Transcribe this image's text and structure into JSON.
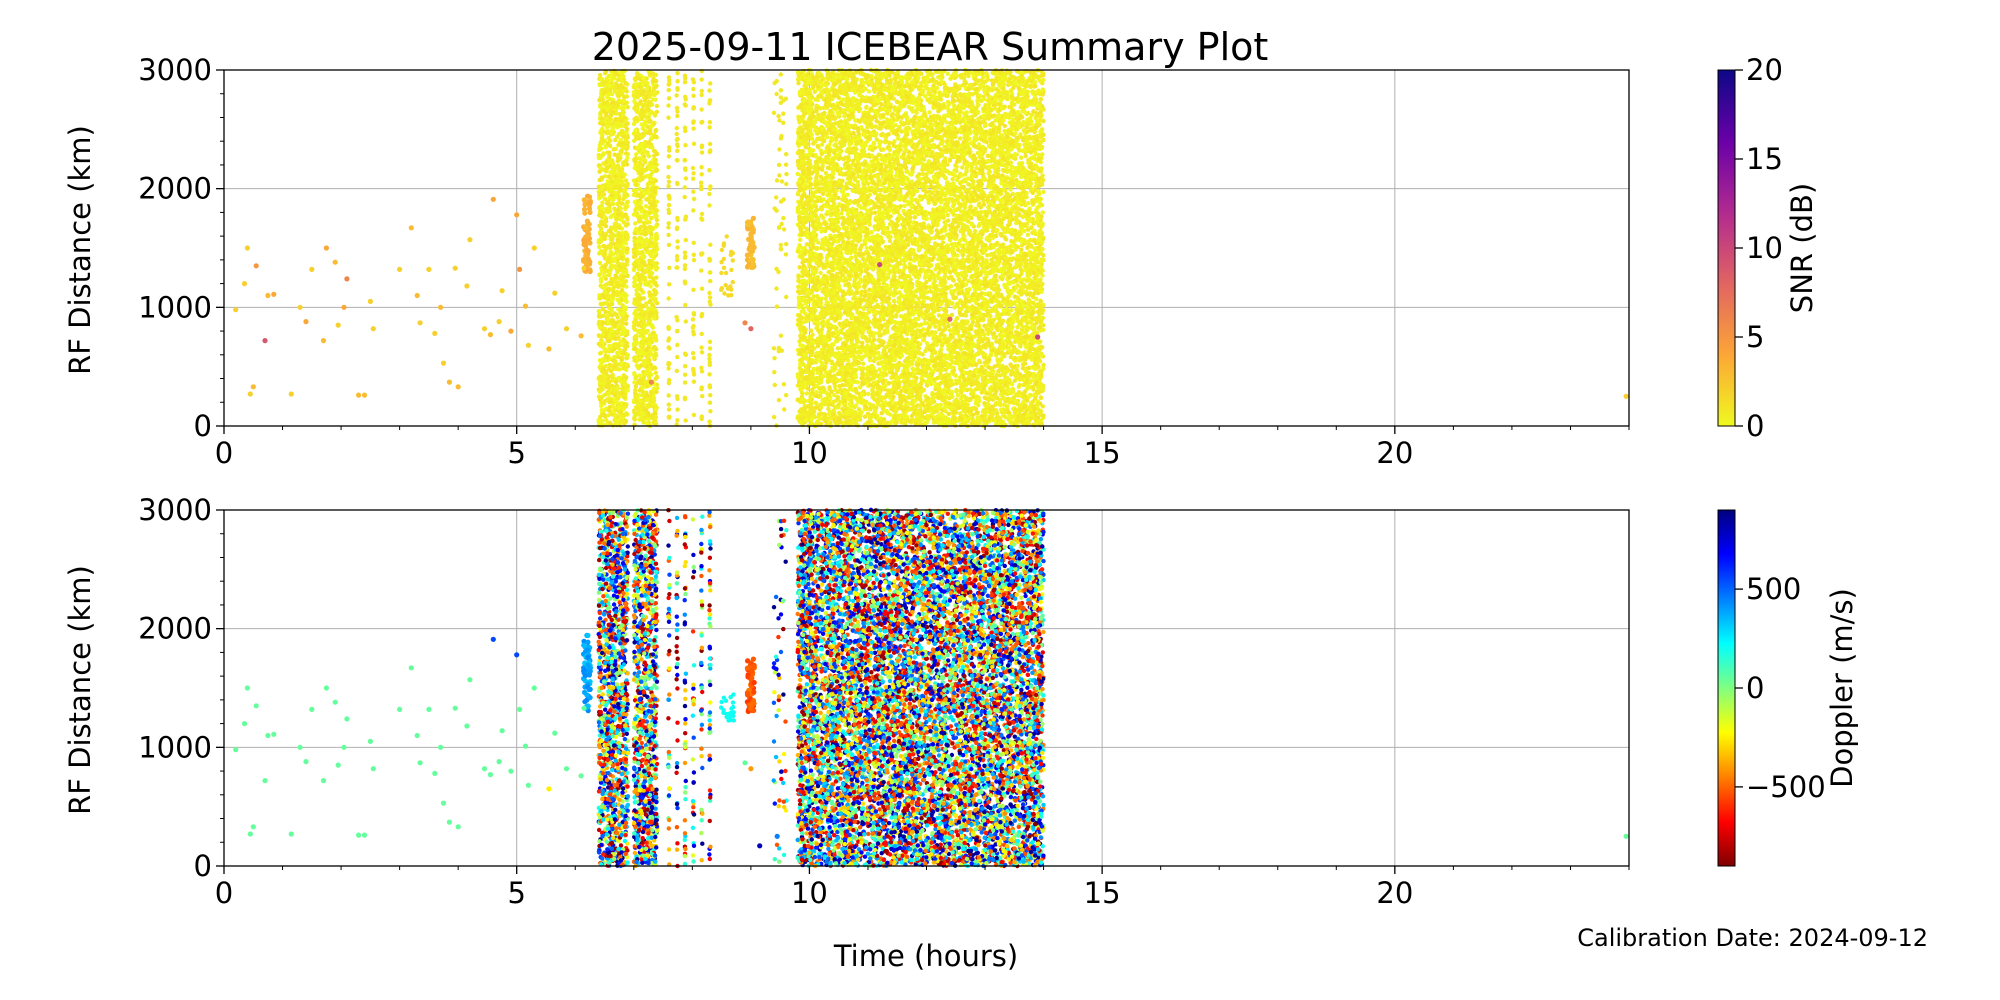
{
  "figure": {
    "title": "2025-09-11 ICEBEAR Summary Plot",
    "xlabel": "Time (hours)",
    "footnote": "Calibration Date: 2024-09-12"
  },
  "chart_data": [
    {
      "type": "scatter",
      "panel": "top",
      "title": "2025-09-11 ICEBEAR Summary Plot",
      "xlabel": "",
      "ylabel": "RF Distance (km)",
      "xlim": [
        0,
        24
      ],
      "ylim": [
        0,
        3000
      ],
      "x_ticks": [
        0,
        5,
        10,
        15,
        20
      ],
      "y_ticks": [
        0,
        1000,
        2000,
        3000
      ],
      "grid": true,
      "color_variable": "SNR (dB)",
      "colorbar": {
        "label": "SNR (dB)",
        "colormap": "plasma_r",
        "range": [
          0,
          20
        ],
        "ticks": [
          0,
          5,
          10,
          15,
          20
        ],
        "stops": [
          "#f0f921",
          "#fca636",
          "#e16462",
          "#b12a90",
          "#6a00a8",
          "#0d0887"
        ]
      },
      "dense_bands": [
        {
          "x": [
            6.4,
            6.9
          ],
          "y": [
            0,
            3000
          ],
          "value": 0.5
        },
        {
          "x": [
            7.0,
            7.4
          ],
          "y": [
            0,
            3000
          ],
          "value": 0.5
        },
        {
          "x": [
            9.8,
            14.0
          ],
          "y": [
            0,
            3000
          ],
          "value": 0.5
        }
      ],
      "sparse_columns": [
        {
          "x": [
            7.6,
            8.3
          ],
          "y": [
            0,
            3000
          ],
          "count": 240,
          "value": 0.8
        },
        {
          "x": [
            8.5,
            8.7
          ],
          "y": [
            1100,
            1600
          ],
          "count": 25,
          "value": 1.5
        },
        {
          "x": [
            9.4,
            9.6
          ],
          "y": [
            0,
            3000
          ],
          "count": 60,
          "value": 0.8
        }
      ],
      "streaks": [
        {
          "x": 6.2,
          "y": [
            1300,
            1950
          ],
          "value": 3.5
        },
        {
          "x": 9.0,
          "y": [
            1300,
            1750
          ],
          "value": 3.0
        }
      ],
      "points": [
        {
          "x": 0.2,
          "y": 980,
          "v": 2
        },
        {
          "x": 0.35,
          "y": 1200,
          "v": 2
        },
        {
          "x": 0.4,
          "y": 1500,
          "v": 2
        },
        {
          "x": 0.45,
          "y": 270,
          "v": 2
        },
        {
          "x": 0.5,
          "y": 330,
          "v": 3
        },
        {
          "x": 0.55,
          "y": 1350,
          "v": 5
        },
        {
          "x": 0.7,
          "y": 720,
          "v": 9
        },
        {
          "x": 0.75,
          "y": 1100,
          "v": 3
        },
        {
          "x": 0.85,
          "y": 1110,
          "v": 4
        },
        {
          "x": 1.15,
          "y": 270,
          "v": 2
        },
        {
          "x": 1.3,
          "y": 1000,
          "v": 2
        },
        {
          "x": 1.4,
          "y": 880,
          "v": 4
        },
        {
          "x": 1.5,
          "y": 1320,
          "v": 2
        },
        {
          "x": 1.7,
          "y": 720,
          "v": 3
        },
        {
          "x": 1.75,
          "y": 1500,
          "v": 4
        },
        {
          "x": 1.9,
          "y": 1380,
          "v": 3
        },
        {
          "x": 1.95,
          "y": 850,
          "v": 2
        },
        {
          "x": 2.05,
          "y": 1000,
          "v": 4
        },
        {
          "x": 2.1,
          "y": 1240,
          "v": 6
        },
        {
          "x": 2.3,
          "y": 260,
          "v": 3
        },
        {
          "x": 2.4,
          "y": 260,
          "v": 3
        },
        {
          "x": 2.5,
          "y": 1050,
          "v": 2
        },
        {
          "x": 2.55,
          "y": 820,
          "v": 2
        },
        {
          "x": 3.0,
          "y": 1320,
          "v": 2
        },
        {
          "x": 3.2,
          "y": 1670,
          "v": 3
        },
        {
          "x": 3.3,
          "y": 1100,
          "v": 3
        },
        {
          "x": 3.35,
          "y": 870,
          "v": 2
        },
        {
          "x": 3.5,
          "y": 1320,
          "v": 2
        },
        {
          "x": 3.6,
          "y": 780,
          "v": 2
        },
        {
          "x": 3.7,
          "y": 1000,
          "v": 3
        },
        {
          "x": 3.75,
          "y": 530,
          "v": 2
        },
        {
          "x": 3.85,
          "y": 370,
          "v": 3
        },
        {
          "x": 3.95,
          "y": 1330,
          "v": 2
        },
        {
          "x": 4.0,
          "y": 330,
          "v": 3
        },
        {
          "x": 4.15,
          "y": 1180,
          "v": 2
        },
        {
          "x": 4.2,
          "y": 1570,
          "v": 2
        },
        {
          "x": 4.45,
          "y": 820,
          "v": 2
        },
        {
          "x": 4.55,
          "y": 770,
          "v": 3
        },
        {
          "x": 4.6,
          "y": 1910,
          "v": 4
        },
        {
          "x": 4.7,
          "y": 880,
          "v": 2
        },
        {
          "x": 4.75,
          "y": 1140,
          "v": 2
        },
        {
          "x": 4.9,
          "y": 800,
          "v": 4
        },
        {
          "x": 5.0,
          "y": 1780,
          "v": 4
        },
        {
          "x": 5.05,
          "y": 1320,
          "v": 5
        },
        {
          "x": 5.15,
          "y": 1010,
          "v": 3
        },
        {
          "x": 5.2,
          "y": 680,
          "v": 2
        },
        {
          "x": 5.3,
          "y": 1500,
          "v": 2
        },
        {
          "x": 5.55,
          "y": 650,
          "v": 3
        },
        {
          "x": 5.65,
          "y": 1120,
          "v": 2
        },
        {
          "x": 5.85,
          "y": 820,
          "v": 2
        },
        {
          "x": 6.1,
          "y": 760,
          "v": 3
        },
        {
          "x": 6.15,
          "y": 1330,
          "v": 2
        },
        {
          "x": 7.3,
          "y": 370,
          "v": 6
        },
        {
          "x": 8.9,
          "y": 870,
          "v": 6
        },
        {
          "x": 9.0,
          "y": 820,
          "v": 8
        },
        {
          "x": 11.2,
          "y": 1360,
          "v": 10
        },
        {
          "x": 12.4,
          "y": 900,
          "v": 8
        },
        {
          "x": 13.9,
          "y": 750,
          "v": 10
        },
        {
          "x": 23.95,
          "y": 250,
          "v": 2
        }
      ]
    },
    {
      "type": "scatter",
      "panel": "bottom",
      "title": "",
      "xlabel": "Time (hours)",
      "ylabel": "RF Distance (km)",
      "xlim": [
        0,
        24
      ],
      "ylim": [
        0,
        3000
      ],
      "x_ticks": [
        0,
        5,
        10,
        15,
        20
      ],
      "y_ticks": [
        0,
        1000,
        2000,
        3000
      ],
      "grid": true,
      "color_variable": "Doppler (m/s)",
      "colorbar": {
        "label": "Doppler (m/s)",
        "colormap": "jet_r",
        "range": [
          -900,
          900
        ],
        "ticks": [
          -500,
          0,
          500
        ],
        "stops": [
          "#800000",
          "#ff0000",
          "#ff8000",
          "#ffff00",
          "#80ff80",
          "#00ffff",
          "#0080ff",
          "#0000ff",
          "#000080"
        ]
      },
      "dense_bands": [
        {
          "x": [
            6.4,
            6.9
          ],
          "y": [
            0,
            3000
          ],
          "value": "random"
        },
        {
          "x": [
            7.0,
            7.4
          ],
          "y": [
            0,
            3000
          ],
          "value": "random"
        },
        {
          "x": [
            9.8,
            14.0
          ],
          "y": [
            0,
            3000
          ],
          "value": "random"
        }
      ],
      "sparse_columns": [
        {
          "x": [
            7.6,
            8.3
          ],
          "y": [
            0,
            3000
          ],
          "count": 240,
          "value": "random"
        },
        {
          "x": [
            8.5,
            8.7
          ],
          "y": [
            1200,
            1450
          ],
          "count": 25,
          "value": 200
        },
        {
          "x": [
            9.4,
            9.6
          ],
          "y": [
            0,
            3000
          ],
          "count": 60,
          "value": "random"
        }
      ],
      "streaks": [
        {
          "x": 6.2,
          "y": [
            1300,
            1950
          ],
          "value": 380
        },
        {
          "x": 9.0,
          "y": [
            1300,
            1750
          ],
          "value": -520
        }
      ],
      "points": [
        {
          "x": 0.2,
          "y": 980,
          "v": 50
        },
        {
          "x": 0.35,
          "y": 1200,
          "v": 50
        },
        {
          "x": 0.4,
          "y": 1500,
          "v": 50
        },
        {
          "x": 0.45,
          "y": 270,
          "v": 50
        },
        {
          "x": 0.5,
          "y": 330,
          "v": 50
        },
        {
          "x": 0.55,
          "y": 1350,
          "v": 50
        },
        {
          "x": 0.7,
          "y": 720,
          "v": 50
        },
        {
          "x": 0.75,
          "y": 1100,
          "v": 50
        },
        {
          "x": 0.85,
          "y": 1110,
          "v": 50
        },
        {
          "x": 1.15,
          "y": 270,
          "v": 50
        },
        {
          "x": 1.3,
          "y": 1000,
          "v": 50
        },
        {
          "x": 1.4,
          "y": 880,
          "v": 50
        },
        {
          "x": 1.5,
          "y": 1320,
          "v": 50
        },
        {
          "x": 1.7,
          "y": 720,
          "v": 50
        },
        {
          "x": 1.75,
          "y": 1500,
          "v": 50
        },
        {
          "x": 1.9,
          "y": 1380,
          "v": 50
        },
        {
          "x": 1.95,
          "y": 850,
          "v": 50
        },
        {
          "x": 2.05,
          "y": 1000,
          "v": 50
        },
        {
          "x": 2.1,
          "y": 1240,
          "v": 50
        },
        {
          "x": 2.3,
          "y": 260,
          "v": 50
        },
        {
          "x": 2.4,
          "y": 260,
          "v": 50
        },
        {
          "x": 2.5,
          "y": 1050,
          "v": 50
        },
        {
          "x": 2.55,
          "y": 820,
          "v": 50
        },
        {
          "x": 3.0,
          "y": 1320,
          "v": 50
        },
        {
          "x": 3.2,
          "y": 1670,
          "v": 50
        },
        {
          "x": 3.3,
          "y": 1100,
          "v": 50
        },
        {
          "x": 3.35,
          "y": 870,
          "v": 50
        },
        {
          "x": 3.5,
          "y": 1320,
          "v": 50
        },
        {
          "x": 3.6,
          "y": 780,
          "v": 50
        },
        {
          "x": 3.7,
          "y": 1000,
          "v": 50
        },
        {
          "x": 3.75,
          "y": 530,
          "v": 50
        },
        {
          "x": 3.85,
          "y": 370,
          "v": 50
        },
        {
          "x": 3.95,
          "y": 1330,
          "v": 50
        },
        {
          "x": 4.0,
          "y": 330,
          "v": 50
        },
        {
          "x": 4.15,
          "y": 1180,
          "v": 50
        },
        {
          "x": 4.2,
          "y": 1570,
          "v": 50
        },
        {
          "x": 4.45,
          "y": 820,
          "v": 50
        },
        {
          "x": 4.55,
          "y": 770,
          "v": 50
        },
        {
          "x": 4.6,
          "y": 1910,
          "v": 550
        },
        {
          "x": 4.7,
          "y": 880,
          "v": 50
        },
        {
          "x": 4.75,
          "y": 1140,
          "v": 50
        },
        {
          "x": 4.9,
          "y": 800,
          "v": 50
        },
        {
          "x": 5.0,
          "y": 1780,
          "v": 550
        },
        {
          "x": 5.05,
          "y": 1320,
          "v": 50
        },
        {
          "x": 5.15,
          "y": 1010,
          "v": 50
        },
        {
          "x": 5.2,
          "y": 680,
          "v": 50
        },
        {
          "x": 5.3,
          "y": 1500,
          "v": 50
        },
        {
          "x": 5.55,
          "y": 650,
          "v": -250
        },
        {
          "x": 5.65,
          "y": 1120,
          "v": 50
        },
        {
          "x": 5.85,
          "y": 820,
          "v": 50
        },
        {
          "x": 6.1,
          "y": 760,
          "v": 50
        },
        {
          "x": 6.15,
          "y": 1330,
          "v": 50
        },
        {
          "x": 7.3,
          "y": 370,
          "v": -600
        },
        {
          "x": 8.9,
          "y": 870,
          "v": 50
        },
        {
          "x": 9.0,
          "y": 820,
          "v": -400
        },
        {
          "x": 9.15,
          "y": 170,
          "v": 800
        },
        {
          "x": 9.45,
          "y": 250,
          "v": 450
        },
        {
          "x": 11.2,
          "y": 1360,
          "v": 50
        },
        {
          "x": 12.4,
          "y": 900,
          "v": 50
        },
        {
          "x": 13.9,
          "y": 750,
          "v": 50
        },
        {
          "x": 23.95,
          "y": 250,
          "v": 50
        }
      ]
    }
  ]
}
